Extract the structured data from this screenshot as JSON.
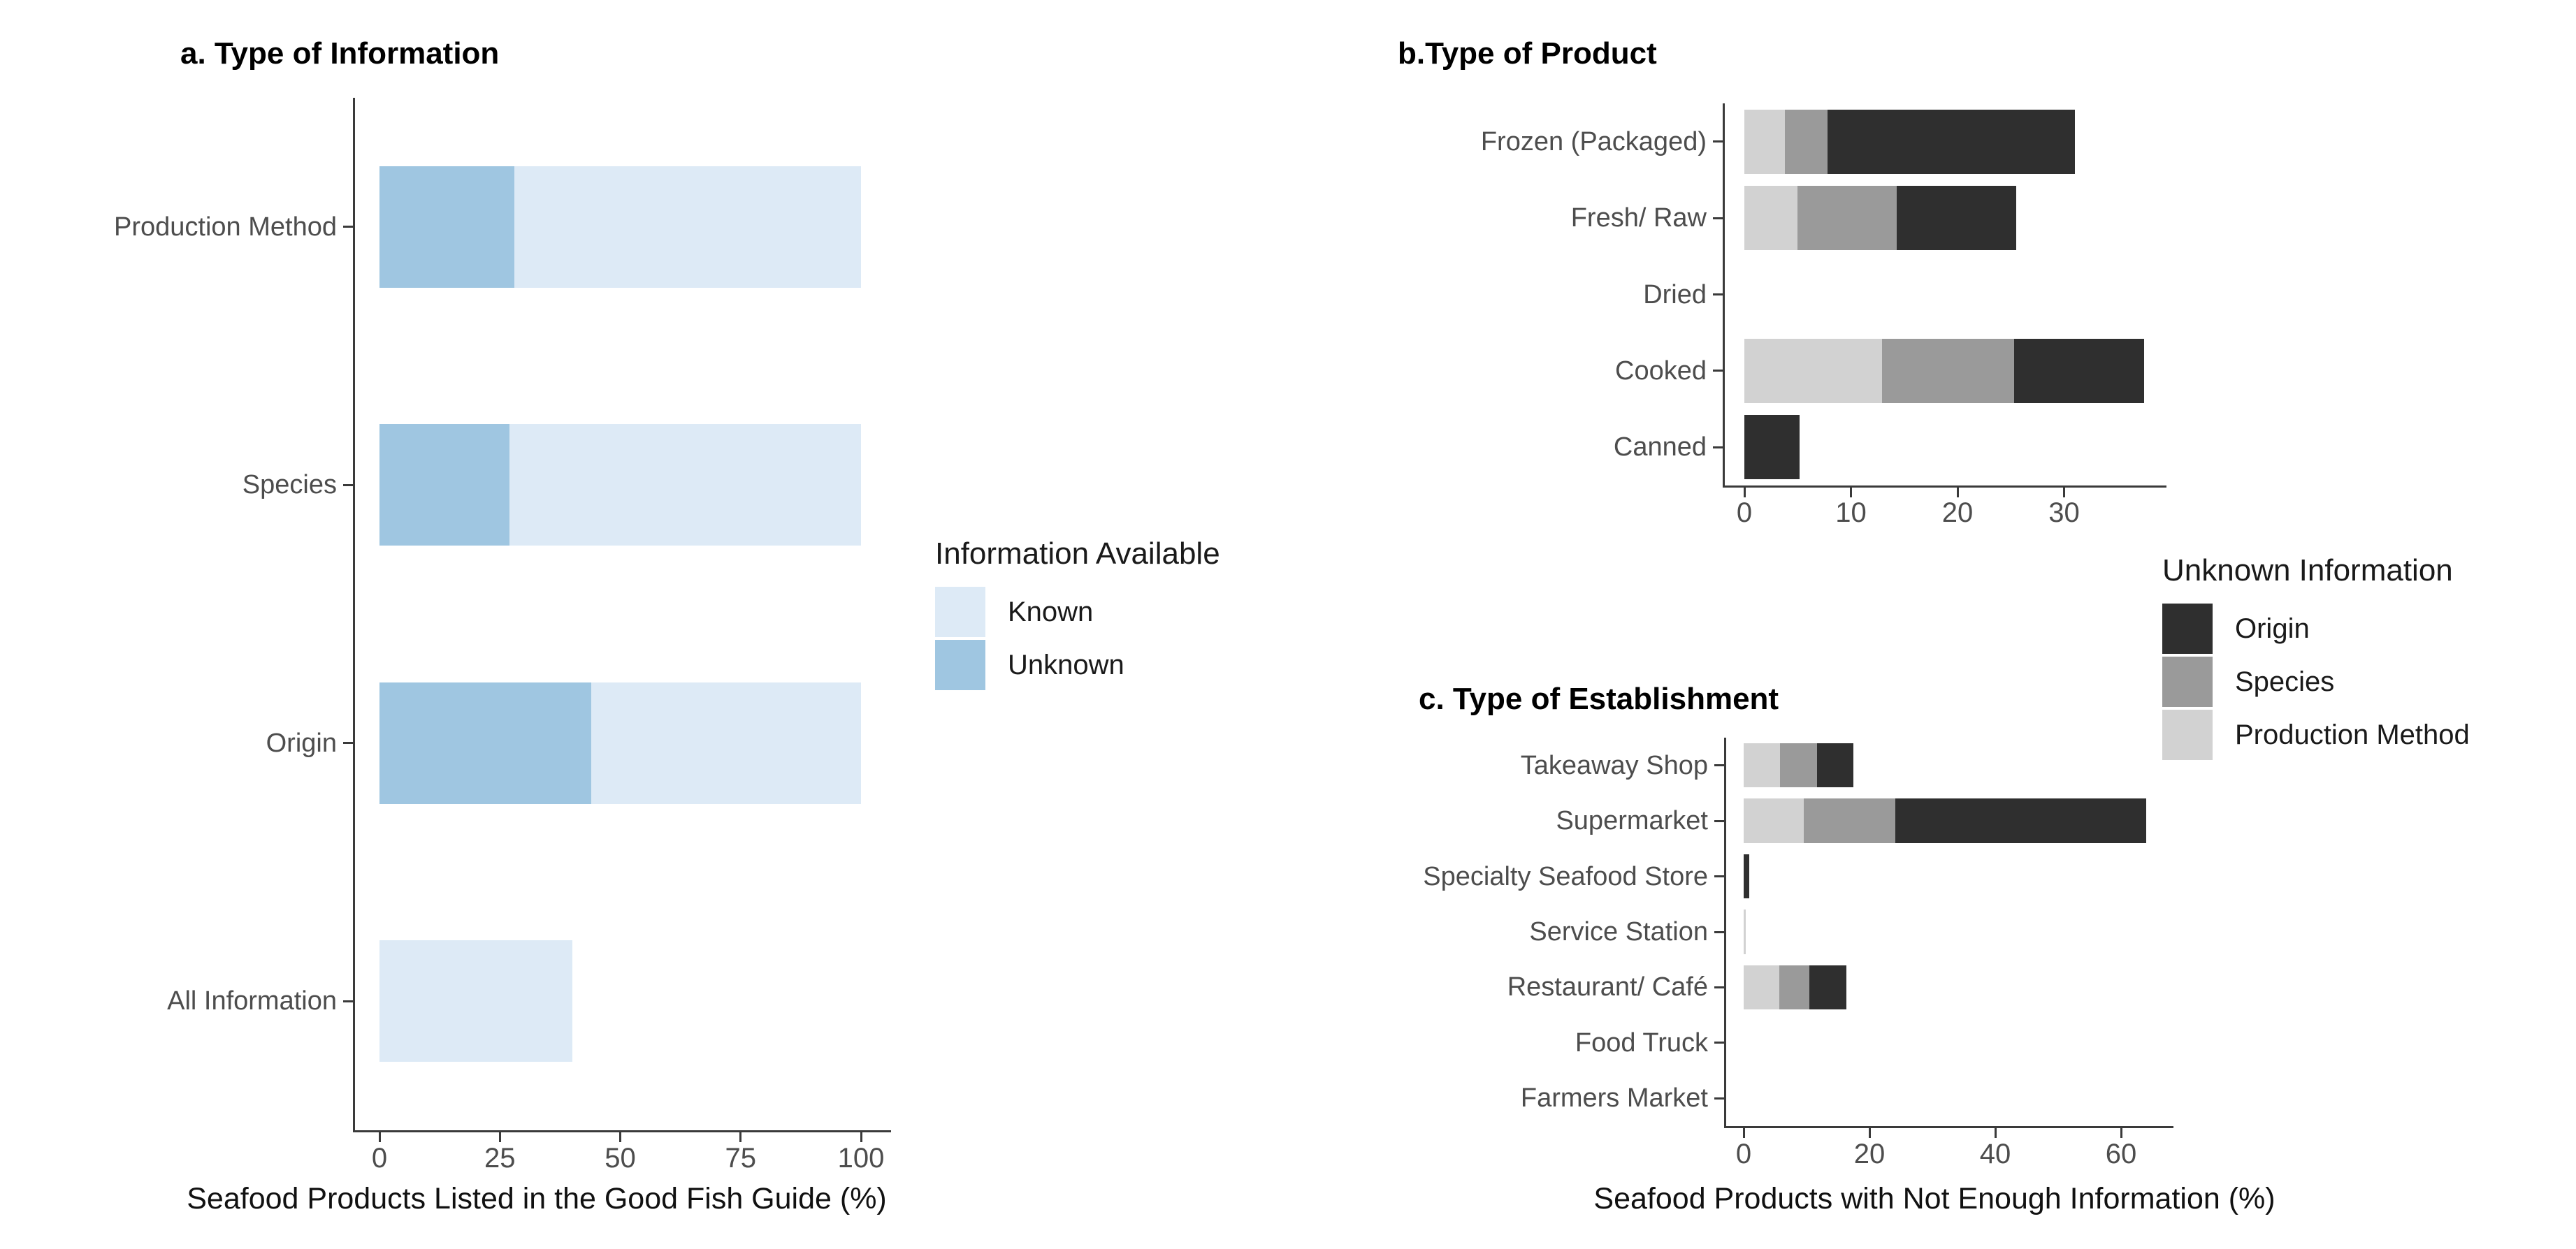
{
  "chart_data": [
    {
      "type": "bar",
      "orientation": "horizontal",
      "stacked": true,
      "title": "a. Type of Information",
      "xlabel": "Seafood Products Listed in the Good Fish Guide (%)",
      "categories": [
        "Production Method",
        "Species",
        "Origin",
        "All Information"
      ],
      "series": [
        {
          "name": "Unknown",
          "color": "#9FC6E1"
        },
        {
          "name": "Known",
          "color": "#DDEAF6"
        }
      ],
      "rows": [
        [
          28,
          72
        ],
        [
          27,
          73
        ],
        [
          44,
          56
        ],
        [
          0,
          40
        ]
      ],
      "x_ticks": [
        0,
        25,
        50,
        75,
        100
      ],
      "xlim": [
        0,
        105
      ],
      "grid": "off",
      "legend_position": "right"
    },
    {
      "type": "bar",
      "orientation": "horizontal",
      "stacked": true,
      "title": "b.Type of Product",
      "xlabel": "",
      "categories": [
        "Frozen (Packaged)",
        "Fresh/ Raw",
        "Dried",
        "Cooked",
        "Canned"
      ],
      "series": [
        {
          "name": "Production Method",
          "color": "#D2D2D2"
        },
        {
          "name": "Species",
          "color": "#9A9A9A"
        },
        {
          "name": "Origin",
          "color": "#2F2F2F"
        }
      ],
      "rows": [
        [
          3.8,
          4.0,
          23.2
        ],
        [
          5.0,
          9.3,
          11.2
        ],
        [
          0,
          0,
          0
        ],
        [
          12.9,
          12.4,
          12.2
        ],
        [
          0,
          0,
          5.2
        ]
      ],
      "x_ticks": [
        0,
        10,
        20,
        30
      ],
      "xlim": [
        0,
        39.5
      ],
      "grid": "off",
      "legend_position": "right"
    },
    {
      "type": "bar",
      "orientation": "horizontal",
      "stacked": true,
      "title": "c. Type of Establishment",
      "xlabel": "Seafood Products with Not Enough Information (%)",
      "categories": [
        "Takeaway Shop",
        "Supermarket",
        "Specialty Seafood Store",
        "Service Station",
        "Restaurant/ Café",
        "Food Truck",
        "Farmers Market"
      ],
      "series": [
        {
          "name": "Production Method",
          "color": "#D2D2D2"
        },
        {
          "name": "Species",
          "color": "#9A9A9A"
        },
        {
          "name": "Origin",
          "color": "#2F2F2F"
        }
      ],
      "rows": [
        [
          5.8,
          5.9,
          5.7
        ],
        [
          9.5,
          14.6,
          39.9
        ],
        [
          0,
          0,
          0.9
        ],
        [
          0.3,
          0,
          0
        ],
        [
          5.7,
          4.7,
          5.9
        ],
        [
          0,
          0,
          0
        ],
        [
          0,
          0,
          0
        ]
      ],
      "x_ticks": [
        0,
        20,
        40,
        60
      ],
      "xlim": [
        0,
        68.5
      ],
      "grid": "off",
      "legend_position": "right"
    }
  ],
  "legends": [
    {
      "title": "Information Available",
      "items": [
        {
          "label": "Known",
          "color": "#DDEAF6"
        },
        {
          "label": "Unknown",
          "color": "#9FC6E1"
        }
      ]
    },
    {
      "title": "Unknown Information",
      "items": [
        {
          "label": "Origin",
          "color": "#2F2F2F"
        },
        {
          "label": "Species",
          "color": "#9A9A9A"
        },
        {
          "label": "Production Method",
          "color": "#D2D2D2"
        }
      ]
    }
  ]
}
